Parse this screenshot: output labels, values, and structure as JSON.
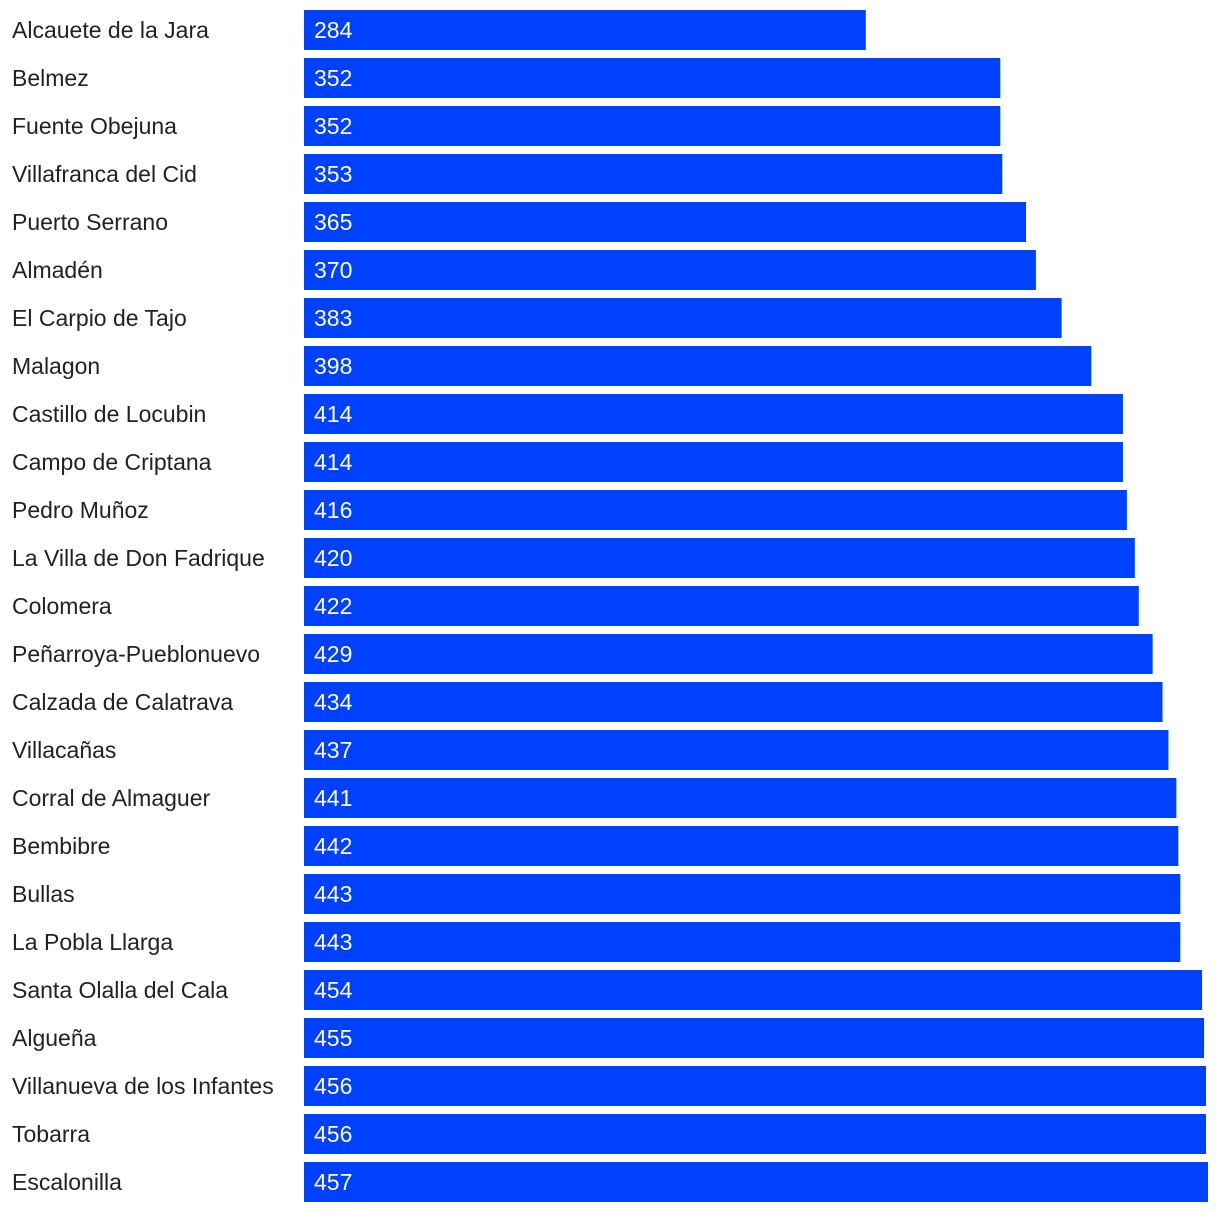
{
  "chart_data": {
    "type": "bar",
    "orientation": "horizontal",
    "bar_color": "#0040ff",
    "label_color": "#222222",
    "value_label_color": "#ffffff",
    "xlim": [
      0,
      457
    ],
    "grid": false,
    "categories": [
      "Alcauete de la Jara",
      "Belmez",
      "Fuente Obejuna",
      "Villafranca del Cid",
      "Puerto Serrano",
      "Almadén",
      "El Carpio de Tajo",
      "Malagon",
      "Castillo de Locubin",
      "Campo de Criptana",
      "Pedro Muñoz",
      "La Villa de Don Fadrique",
      "Colomera",
      "Peñarroya-Pueblonuevo",
      "Calzada de Calatrava",
      "Villacañas",
      "Corral de Almaguer",
      "Bembibre",
      "Bullas",
      "La Pobla Llarga",
      "Santa Olalla del Cala",
      "Algueña",
      "Villanueva de los Infantes",
      "Tobarra",
      "Escalonilla"
    ],
    "values": [
      284,
      352,
      352,
      353,
      365,
      370,
      383,
      398,
      414,
      414,
      416,
      420,
      422,
      429,
      434,
      437,
      441,
      442,
      443,
      443,
      454,
      455,
      456,
      456,
      457
    ]
  }
}
